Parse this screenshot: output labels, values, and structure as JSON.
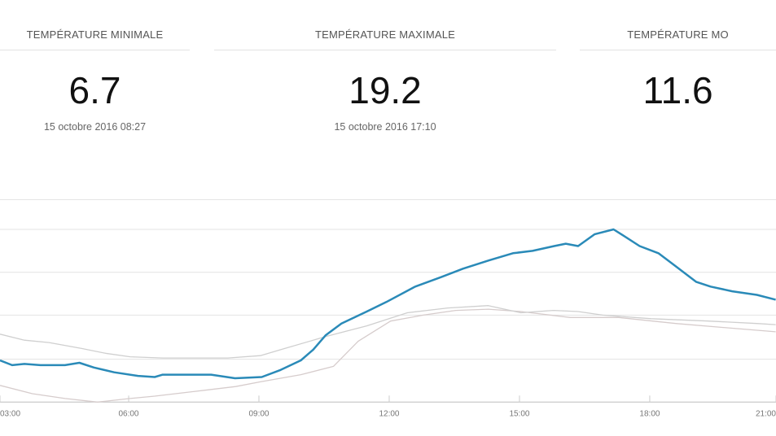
{
  "cards": [
    {
      "title": "TEMPÉRATURE MINIMALE",
      "value": "6.7",
      "date": "15 octobre 2016 08:27"
    },
    {
      "title": "TEMPÉRATURE MAXIMALE",
      "value": "19.2",
      "date": "15 octobre 2016 17:10"
    },
    {
      "title": "TEMPÉRATURE MO",
      "value": "11.6",
      "date": ""
    }
  ],
  "chart_data": {
    "type": "line",
    "title": "",
    "xlabel": "",
    "ylabel": "",
    "x_ticks": [
      "03:00",
      "06:00",
      "09:00",
      "12:00",
      "15:00",
      "18:00",
      "21:00"
    ],
    "grid": true,
    "gridlines_y": [
      8.3,
      12.0,
      15.6,
      19.2,
      21.7
    ],
    "ylim": [
      4.7,
      21.7
    ],
    "xlim": [
      "03:02",
      "20:54"
    ],
    "series": [
      {
        "color": "#2a8ab8",
        "points": [
          [
            "03:02",
            8.2
          ],
          [
            "03:19",
            7.8
          ],
          [
            "03:36",
            7.9
          ],
          [
            "03:58",
            7.8
          ],
          [
            "04:32",
            7.8
          ],
          [
            "04:52",
            8.0
          ],
          [
            "05:12",
            7.6
          ],
          [
            "05:40",
            7.2
          ],
          [
            "06:13",
            6.9
          ],
          [
            "06:36",
            6.8
          ],
          [
            "06:47",
            7.0
          ],
          [
            "07:54",
            7.0
          ],
          [
            "08:27",
            6.7
          ],
          [
            "09:04",
            6.8
          ],
          [
            "09:30",
            7.4
          ],
          [
            "09:58",
            8.2
          ],
          [
            "10:15",
            9.1
          ],
          [
            "10:32",
            10.3
          ],
          [
            "10:54",
            11.3
          ],
          [
            "11:29",
            12.3
          ],
          [
            "11:56",
            13.1
          ],
          [
            "12:36",
            14.4
          ],
          [
            "13:12",
            15.2
          ],
          [
            "13:42",
            15.9
          ],
          [
            "14:18",
            16.6
          ],
          [
            "14:51",
            17.2
          ],
          [
            "15:18",
            17.4
          ],
          [
            "15:48",
            17.8
          ],
          [
            "16:04",
            18.0
          ],
          [
            "16:21",
            17.8
          ],
          [
            "16:44",
            18.8
          ],
          [
            "17:10",
            19.2
          ],
          [
            "17:23",
            18.7
          ],
          [
            "17:46",
            17.8
          ],
          [
            "18:12",
            17.2
          ],
          [
            "18:36",
            16.1
          ],
          [
            "19:04",
            14.8
          ],
          [
            "19:24",
            14.4
          ],
          [
            "19:54",
            14.0
          ],
          [
            "20:28",
            13.7
          ],
          [
            "20:54",
            13.3
          ]
        ]
      },
      {
        "color": "#cfcfcf",
        "points": [
          [
            "03:02",
            10.4
          ],
          [
            "03:36",
            9.9
          ],
          [
            "04:10",
            9.7
          ],
          [
            "04:55",
            9.2
          ],
          [
            "05:28",
            8.8
          ],
          [
            "06:02",
            8.5
          ],
          [
            "06:47",
            8.4
          ],
          [
            "07:32",
            8.4
          ],
          [
            "08:17",
            8.4
          ],
          [
            "09:02",
            8.6
          ],
          [
            "09:30",
            9.1
          ],
          [
            "10:32",
            10.2
          ],
          [
            "11:29",
            11.1
          ],
          [
            "12:25",
            12.2
          ],
          [
            "13:21",
            12.6
          ],
          [
            "14:17",
            12.8
          ],
          [
            "15:02",
            12.2
          ],
          [
            "15:47",
            12.4
          ],
          [
            "16:21",
            12.3
          ],
          [
            "16:55",
            12.0
          ],
          [
            "18:02",
            11.7
          ],
          [
            "19:21",
            11.5
          ],
          [
            "20:28",
            11.3
          ],
          [
            "20:54",
            11.2
          ]
        ]
      },
      {
        "color": "#d6cccc",
        "points": [
          [
            "03:02",
            6.1
          ],
          [
            "03:47",
            5.4
          ],
          [
            "04:32",
            5.0
          ],
          [
            "05:17",
            4.7
          ],
          [
            "06:02",
            5.0
          ],
          [
            "06:36",
            5.2
          ],
          [
            "07:32",
            5.6
          ],
          [
            "08:28",
            6.0
          ],
          [
            "09:02",
            6.4
          ],
          [
            "09:58",
            7.0
          ],
          [
            "10:43",
            7.7
          ],
          [
            "11:17",
            9.8
          ],
          [
            "12:02",
            11.5
          ],
          [
            "12:47",
            12.0
          ],
          [
            "13:32",
            12.4
          ],
          [
            "14:17",
            12.5
          ],
          [
            "15:02",
            12.3
          ],
          [
            "16:10",
            11.8
          ],
          [
            "17:17",
            11.8
          ],
          [
            "18:36",
            11.3
          ],
          [
            "19:54",
            10.9
          ],
          [
            "20:54",
            10.6
          ]
        ]
      }
    ]
  }
}
